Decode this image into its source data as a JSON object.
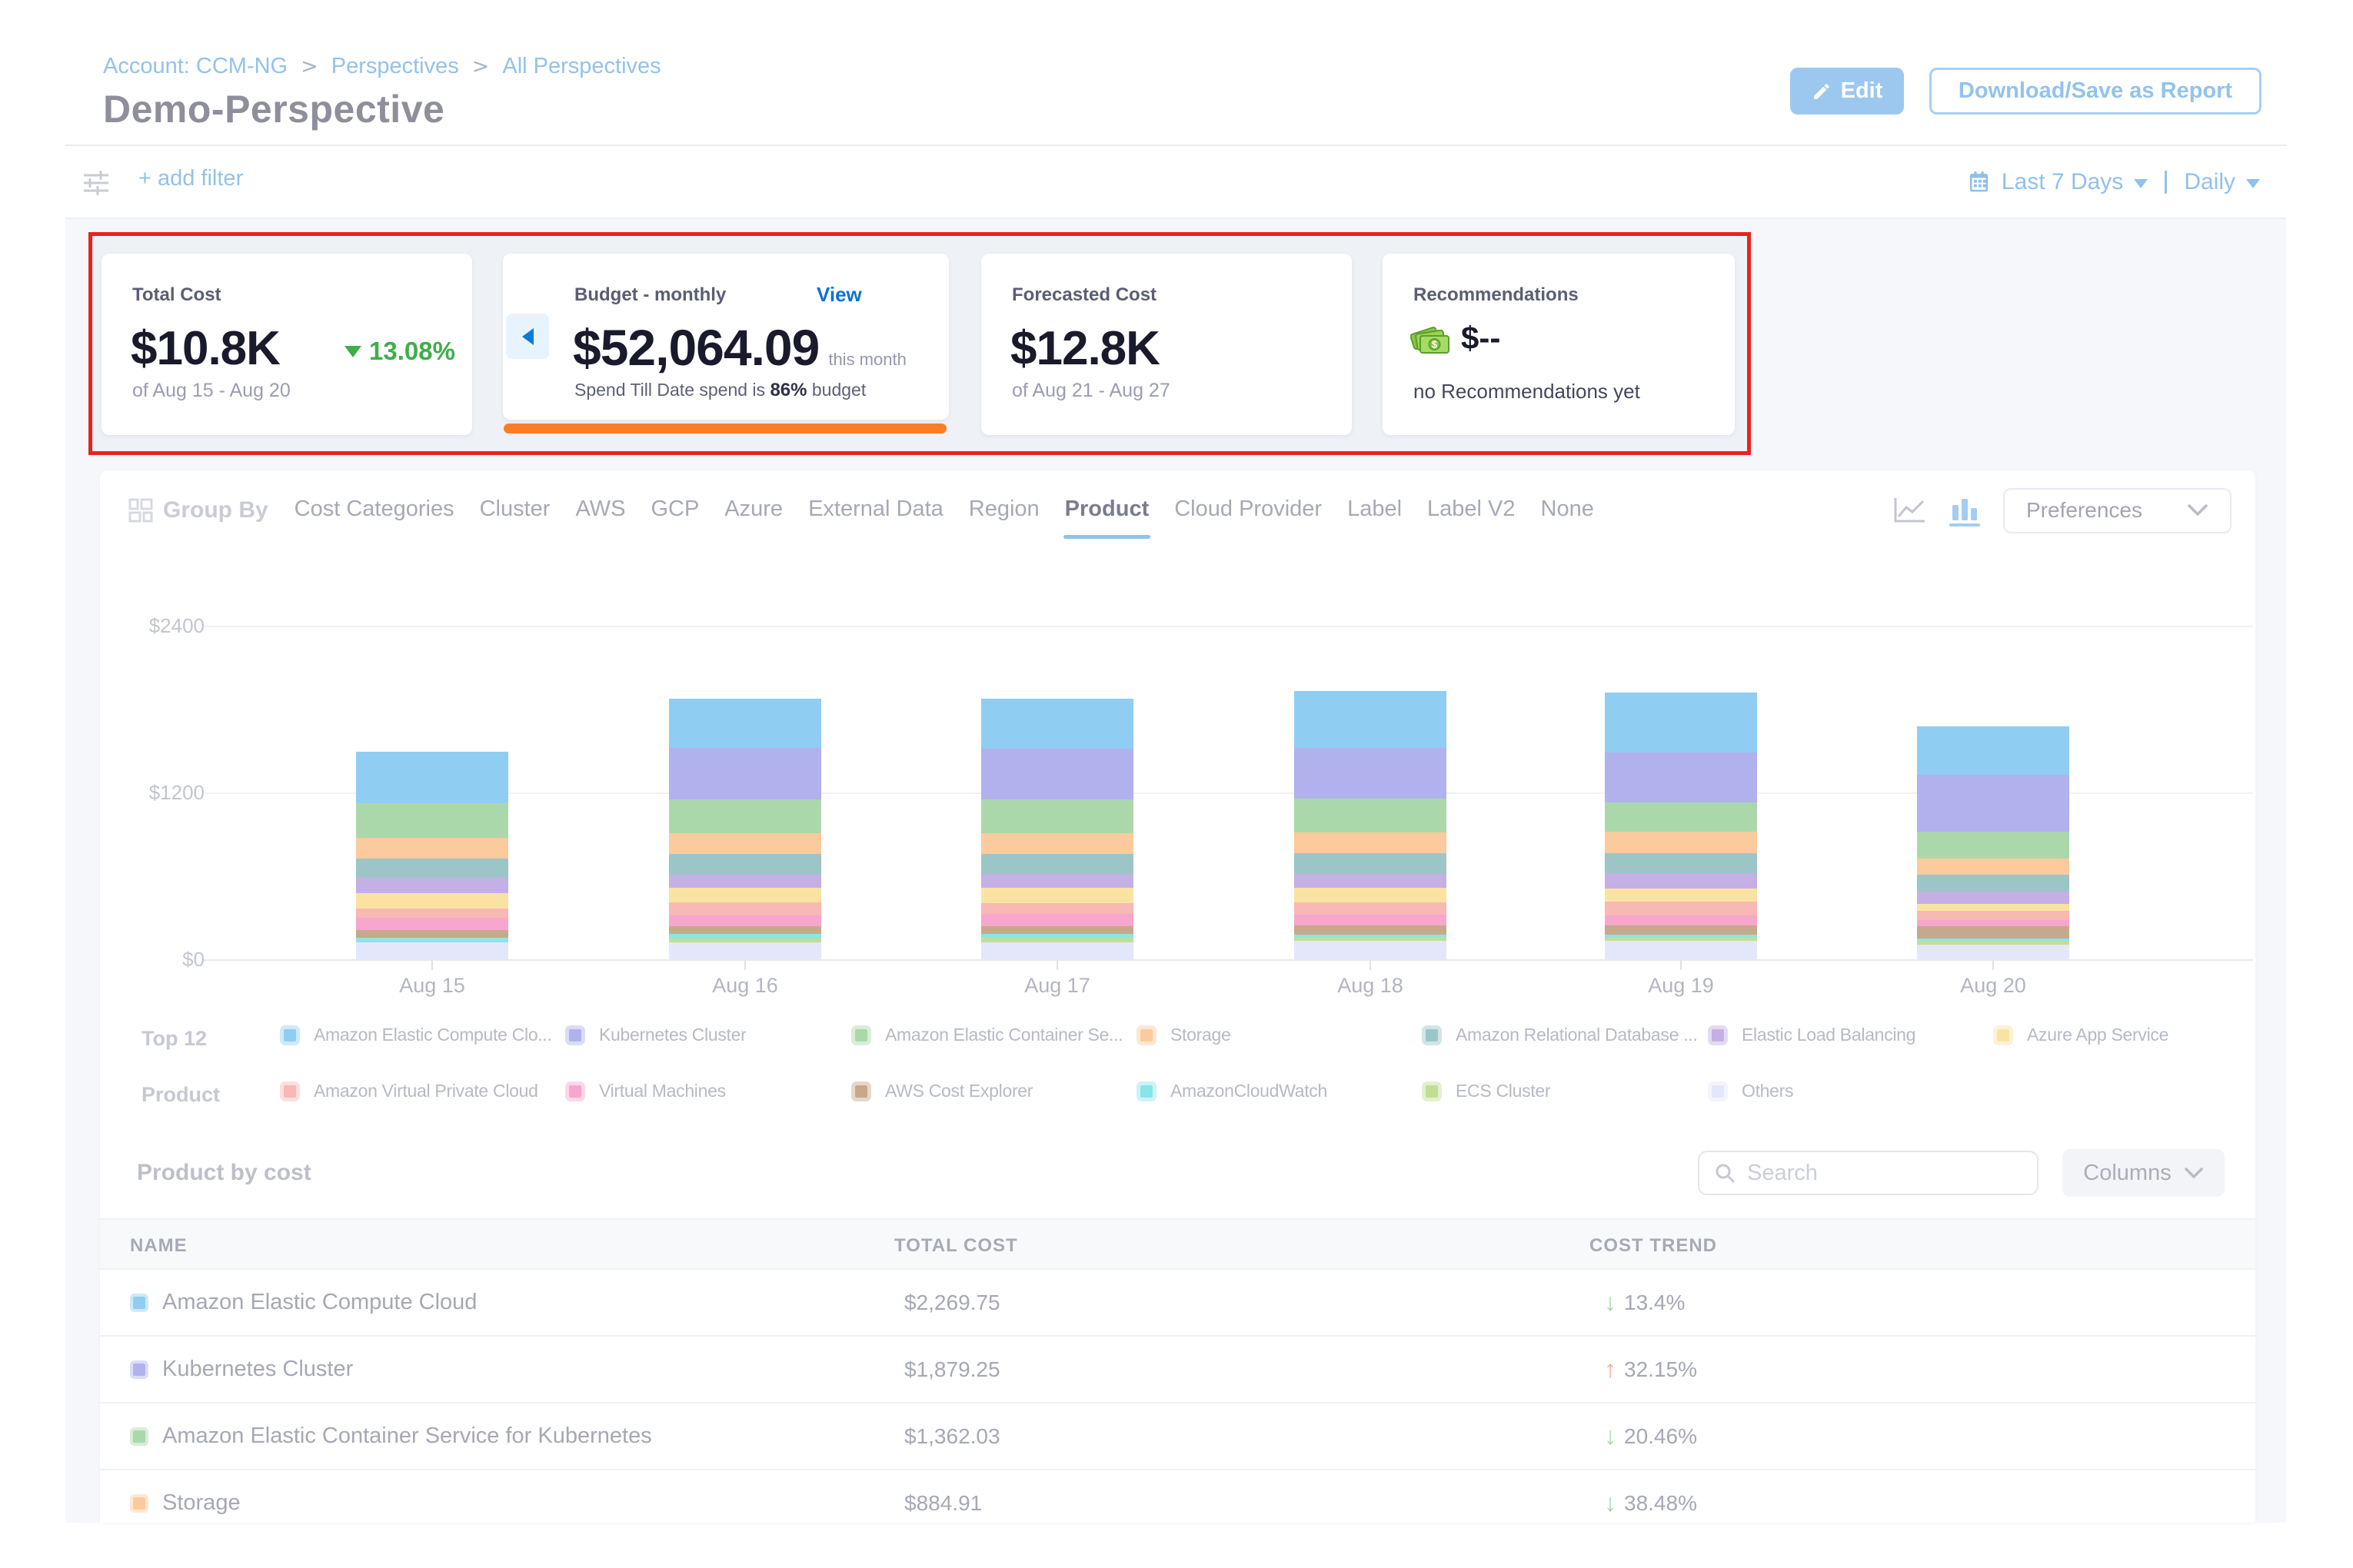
{
  "breadcrumb": {
    "items": [
      "Account: CCM-NG",
      "Perspectives",
      "All Perspectives"
    ]
  },
  "header": {
    "title": "Demo-Perspective",
    "edit_label": "Edit",
    "download_label": "Download/Save as Report"
  },
  "filter_bar": {
    "add_filter_label": "+ add filter",
    "date_range_label": "Last 7 Days",
    "granularity_label": "Daily"
  },
  "summary_cards": {
    "total_cost": {
      "label": "Total Cost",
      "value": "$10.8K",
      "trend_pct": "13.08%",
      "trend_direction": "down",
      "period": "of Aug 15 - Aug 20"
    },
    "budget": {
      "label": "Budget - monthly",
      "action_label": "View",
      "value": "$52,064.09",
      "value_suffix": "this month",
      "note_prefix": "Spend Till Date spend is",
      "note_pct": "86%",
      "note_suffix": "budget",
      "progress_color": "#ff7c25"
    },
    "forecasted_cost": {
      "label": "Forecasted Cost",
      "value": "$12.8K",
      "period": "of Aug 21 - Aug 27"
    },
    "recommendations": {
      "label": "Recommendations",
      "value": "$--",
      "note": "no Recommendations yet"
    }
  },
  "annotation": {
    "highlight_border_color": "#e8231f"
  },
  "group_by": {
    "label": "Group By",
    "options": [
      "Cost Categories",
      "Cluster",
      "AWS",
      "GCP",
      "Azure",
      "External Data",
      "Region",
      "Product",
      "Cloud Provider",
      "Label",
      "Label V2",
      "None"
    ],
    "selected": "Product",
    "preferences_label": "Preferences"
  },
  "chart_data": {
    "type": "bar",
    "stacked": true,
    "title": "",
    "xlabel": "",
    "ylabel": "",
    "ylim": [
      0,
      2400
    ],
    "ytick_labels": [
      "$0",
      "$1200",
      "$2400"
    ],
    "grid": true,
    "legend_position": "bottom",
    "categories": [
      "Aug 15",
      "Aug 16",
      "Aug 17",
      "Aug 18",
      "Aug 19",
      "Aug 20"
    ],
    "series": [
      {
        "name": "Amazon Elastic Compute Clo...",
        "color": "#90cdf3",
        "values": [
          366,
          355,
          361,
          410,
          432,
          349
        ]
      },
      {
        "name": "Kubernetes Cluster",
        "color": "#b1b1ee",
        "values": [
          0,
          366,
          361,
          366,
          360,
          410
        ]
      },
      {
        "name": "Amazon Elastic Container Se...",
        "color": "#abd8ab",
        "values": [
          249,
          244,
          244,
          244,
          211,
          189
        ]
      },
      {
        "name": "Storage",
        "color": "#fbca9d",
        "values": [
          150,
          150,
          150,
          150,
          155,
          116
        ]
      },
      {
        "name": "Amazon Relational Database ...",
        "color": "#9cc5c8",
        "values": [
          139,
          150,
          144,
          150,
          139,
          122
        ]
      },
      {
        "name": "Elastic Load Balancing",
        "color": "#c4b0e5",
        "values": [
          111,
          94,
          100,
          100,
          111,
          89
        ]
      },
      {
        "name": "Azure App Service",
        "color": "#fae3a2",
        "values": [
          111,
          105,
          111,
          100,
          94,
          50
        ]
      },
      {
        "name": "Amazon Virtual Private Cloud",
        "color": "#f8b8b3",
        "values": [
          66,
          94,
          78,
          89,
          100,
          66
        ]
      },
      {
        "name": "Virtual Machines",
        "color": "#f7a6cd",
        "values": [
          89,
          78,
          89,
          78,
          72,
          44
        ]
      },
      {
        "name": "AWS Cost Explorer",
        "color": "#c6a98a",
        "values": [
          55,
          55,
          55,
          66,
          66,
          89
        ]
      },
      {
        "name": "AmazonCloudWatch",
        "color": "#8be4e9",
        "values": [
          33,
          33,
          28,
          17,
          17,
          17
        ]
      },
      {
        "name": "ECS Cluster",
        "color": "#bfdf94",
        "values": [
          0,
          28,
          31,
          28,
          28,
          28
        ]
      },
      {
        "name": "Others",
        "color": "#e4e6fa",
        "values": [
          127,
          127,
          127,
          139,
          139,
          111
        ]
      }
    ]
  },
  "legend": {
    "title_line1": "Top 12",
    "title_line2": "Product"
  },
  "table": {
    "title": "Product by cost",
    "search_placeholder": "Search",
    "columns_label": "Columns",
    "headers": [
      "NAME",
      "TOTAL COST",
      "COST TREND"
    ],
    "rows": [
      {
        "name": "Amazon Elastic Compute Cloud",
        "color": "#90cdf3",
        "total_cost": "$2,269.75",
        "cost_trend": "13.4%",
        "trend_direction": "down"
      },
      {
        "name": "Kubernetes Cluster",
        "color": "#b1b1ee",
        "total_cost": "$1,879.25",
        "cost_trend": "32.15%",
        "trend_direction": "up"
      },
      {
        "name": "Amazon Elastic Container Service for Kubernetes",
        "color": "#abd8ab",
        "total_cost": "$1,362.03",
        "cost_trend": "20.46%",
        "trend_direction": "down"
      },
      {
        "name": "Storage",
        "color": "#fbca9d",
        "total_cost": "$884.91",
        "cost_trend": "38.48%",
        "trend_direction": "down"
      }
    ]
  }
}
